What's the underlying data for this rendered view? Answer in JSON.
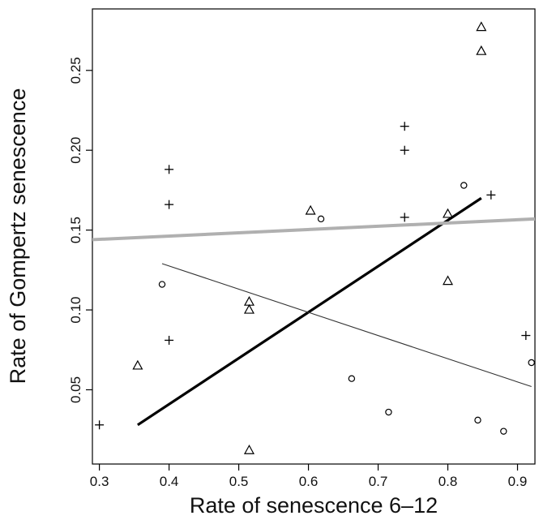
{
  "chart_data": {
    "type": "scatter",
    "xlabel": "Rate of senescence 6–12",
    "ylabel": "Rate of Gompertz senescence",
    "xlim": [
      0.29,
      0.925
    ],
    "ylim": [
      0.0035,
      0.2885
    ],
    "x_ticks": [
      0.3,
      0.4,
      0.5,
      0.6,
      0.7,
      0.8,
      0.9
    ],
    "x_tick_labels": [
      "0.3",
      "0.4",
      "0.5",
      "0.6",
      "0.7",
      "0.8",
      "0.9"
    ],
    "y_ticks": [
      0.05,
      0.1,
      0.15,
      0.2,
      0.25
    ],
    "y_tick_labels": [
      "0.05",
      "0.10",
      "0.15",
      "0.20",
      "0.25"
    ],
    "grid": false,
    "series": [
      {
        "marker": "plus",
        "points": [
          {
            "x": 0.3,
            "y": 0.028
          },
          {
            "x": 0.4,
            "y": 0.188
          },
          {
            "x": 0.4,
            "y": 0.166
          },
          {
            "x": 0.4,
            "y": 0.081
          },
          {
            "x": 0.738,
            "y": 0.215
          },
          {
            "x": 0.738,
            "y": 0.2
          },
          {
            "x": 0.738,
            "y": 0.158
          },
          {
            "x": 0.862,
            "y": 0.172
          },
          {
            "x": 0.912,
            "y": 0.084
          }
        ]
      },
      {
        "marker": "triangle",
        "points": [
          {
            "x": 0.355,
            "y": 0.065
          },
          {
            "x": 0.515,
            "y": 0.105
          },
          {
            "x": 0.515,
            "y": 0.1
          },
          {
            "x": 0.515,
            "y": 0.012
          },
          {
            "x": 0.603,
            "y": 0.162
          },
          {
            "x": 0.8,
            "y": 0.16
          },
          {
            "x": 0.8,
            "y": 0.118
          },
          {
            "x": 0.848,
            "y": 0.277
          },
          {
            "x": 0.848,
            "y": 0.262
          }
        ]
      },
      {
        "marker": "circle",
        "points": [
          {
            "x": 0.39,
            "y": 0.116
          },
          {
            "x": 0.618,
            "y": 0.157
          },
          {
            "x": 0.662,
            "y": 0.057
          },
          {
            "x": 0.715,
            "y": 0.036
          },
          {
            "x": 0.823,
            "y": 0.178
          },
          {
            "x": 0.843,
            "y": 0.031
          },
          {
            "x": 0.88,
            "y": 0.024
          },
          {
            "x": 0.92,
            "y": 0.067
          }
        ]
      }
    ],
    "lines": [
      {
        "style": "thick-black",
        "color": "#000000",
        "x": [
          0.355,
          0.848
        ],
        "y": [
          0.028,
          0.17
        ]
      },
      {
        "style": "thick-gray",
        "color": "#b0b0b0",
        "x": [
          0.29,
          0.925
        ],
        "y": [
          0.144,
          0.157
        ]
      },
      {
        "style": "thin-black",
        "color": "#333333",
        "x": [
          0.39,
          0.92
        ],
        "y": [
          0.129,
          0.052
        ]
      }
    ]
  }
}
